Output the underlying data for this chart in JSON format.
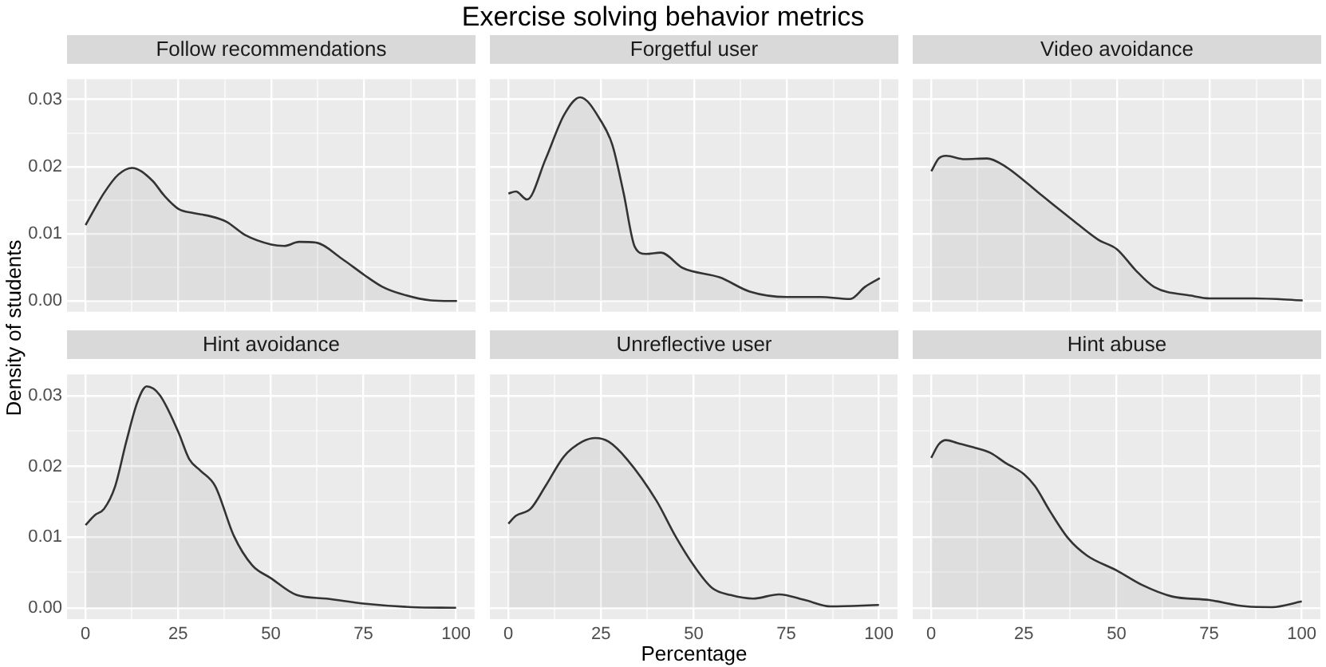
{
  "chart_data": [
    {
      "type": "area",
      "title": "Follow recommendations",
      "annotations": [
        "Exercise solving behavior metrics"
      ],
      "ylabel": "Density of students",
      "color": "#333333",
      "grid": true,
      "tick_labels": "y",
      "x": [
        0,
        5,
        8.8,
        12.5,
        18,
        21,
        25,
        29,
        33.7,
        37.9,
        43,
        50,
        53.5,
        57.5,
        62,
        69,
        75,
        80,
        84.7,
        93,
        100
      ],
      "values": [
        0.0113,
        0.0161,
        0.0188,
        0.0198,
        0.0179,
        0.0158,
        0.0137,
        0.0131,
        0.0126,
        0.0118,
        0.0098,
        0.0084,
        0.0082,
        0.0088,
        0.0087,
        0.0063,
        0.0039,
        0.0021,
        0.0011,
        0.0001,
        0
      ],
      "xlim": [
        -5,
        105
      ],
      "xticks": [
        0,
        {
          "value": 12.5,
          "label": null
        },
        25,
        {
          "value": 37.5,
          "label": null
        },
        50,
        {
          "value": 62.5,
          "label": null
        },
        75,
        {
          "value": 87.5,
          "label": null
        },
        100
      ],
      "ylim": [
        -0.0016,
        0.033
      ],
      "yticks": [
        {
          "value": 0,
          "label": "0.00"
        },
        {
          "value": 0.005,
          "label": null
        },
        {
          "value": 0.01,
          "label": "0.01"
        },
        {
          "value": 0.015,
          "label": null
        },
        {
          "value": 0.02,
          "label": "0.02"
        },
        {
          "value": 0.025,
          "label": null
        },
        {
          "value": 0.03,
          "label": "0.03"
        }
      ]
    },
    {
      "type": "area",
      "title": "Forgetful user",
      "color": "#333333",
      "grid": true,
      "tick_labels": false,
      "x": [
        0,
        2,
        5,
        10,
        15,
        19.3,
        25,
        28,
        31,
        34,
        37,
        41,
        47,
        57,
        65,
        75,
        84,
        92,
        96,
        100
      ],
      "values": [
        0.016,
        0.0163,
        0.0151,
        0.0211,
        0.0277,
        0.0303,
        0.0267,
        0.0232,
        0.0161,
        0.0081,
        0.007,
        0.0072,
        0.0049,
        0.0035,
        0.0014,
        0.0006,
        0.0006,
        0.0003,
        0.0021,
        0.0034
      ],
      "xlim": [
        -5,
        105
      ],
      "xticks": [
        0,
        {
          "value": 12.5,
          "label": null
        },
        25,
        {
          "value": 37.5,
          "label": null
        },
        50,
        {
          "value": 62.5,
          "label": null
        },
        75,
        {
          "value": 87.5,
          "label": null
        },
        100
      ],
      "ylim": [
        -0.0016,
        0.033
      ],
      "yticks": [
        0,
        {
          "value": 0.005,
          "label": null
        },
        0.01,
        {
          "value": 0.015,
          "label": null
        },
        0.02,
        {
          "value": 0.025,
          "label": null
        },
        0.03
      ]
    },
    {
      "type": "area",
      "title": "Video avoidance",
      "color": "#333333",
      "grid": true,
      "tick_labels": false,
      "x": [
        0,
        2,
        4,
        9,
        15,
        20,
        25,
        30,
        37.5,
        45,
        50,
        55,
        60,
        70,
        75,
        87,
        100
      ],
      "values": [
        0.0193,
        0.0212,
        0.0216,
        0.0211,
        0.0212,
        0.02,
        0.0179,
        0.0156,
        0.0123,
        0.0091,
        0.0077,
        0.0046,
        0.0021,
        0.0008,
        0.0004,
        0.0004,
        0.0001
      ],
      "xlim": [
        -5,
        105
      ],
      "xticks": [
        0,
        {
          "value": 12.5,
          "label": null
        },
        25,
        {
          "value": 37.5,
          "label": null
        },
        50,
        {
          "value": 62.5,
          "label": null
        },
        75,
        {
          "value": 87.5,
          "label": null
        },
        100
      ],
      "ylim": [
        -0.0016,
        0.033
      ],
      "yticks": [
        0,
        {
          "value": 0.005,
          "label": null
        },
        0.01,
        {
          "value": 0.015,
          "label": null
        },
        0.02,
        {
          "value": 0.025,
          "label": null
        },
        0.03
      ]
    },
    {
      "type": "area",
      "title": "Hint avoidance",
      "color": "#333333",
      "grid": true,
      "x": [
        0,
        2.5,
        5,
        8,
        11,
        14,
        16.5,
        20,
        25,
        28,
        31,
        35,
        40,
        45,
        50,
        57,
        65,
        75,
        88,
        100
      ],
      "values": [
        0.0117,
        0.0131,
        0.014,
        0.0172,
        0.0235,
        0.0291,
        0.0313,
        0.0301,
        0.0249,
        0.021,
        0.0194,
        0.0172,
        0.0102,
        0.006,
        0.0042,
        0.0018,
        0.0013,
        0.0006,
        0.0001,
        0
      ],
      "xlim": [
        -5,
        105
      ],
      "xticks": [
        0,
        {
          "value": 12.5,
          "label": null
        },
        25,
        {
          "value": 37.5,
          "label": null
        },
        50,
        {
          "value": 62.5,
          "label": null
        },
        75,
        {
          "value": 87.5,
          "label": null
        },
        100
      ],
      "ylim": [
        -0.0016,
        0.033
      ],
      "yticks": [
        {
          "value": 0,
          "label": "0.00"
        },
        {
          "value": 0.005,
          "label": null
        },
        {
          "value": 0.01,
          "label": "0.01"
        },
        {
          "value": 0.015,
          "label": null
        },
        {
          "value": 0.02,
          "label": "0.02"
        },
        {
          "value": 0.025,
          "label": null
        },
        {
          "value": 0.03,
          "label": "0.03"
        }
      ]
    },
    {
      "type": "area",
      "title": "Unreflective user",
      "xlabel": "Percentage",
      "color": "#333333",
      "grid": true,
      "tick_labels": "x",
      "x": [
        0,
        2,
        6,
        10,
        15,
        20,
        23.5,
        27,
        32,
        40,
        45,
        50,
        55,
        60,
        66,
        73,
        80,
        87,
        100
      ],
      "values": [
        0.0119,
        0.013,
        0.014,
        0.0172,
        0.0214,
        0.0235,
        0.024,
        0.0235,
        0.021,
        0.0151,
        0.0102,
        0.006,
        0.0028,
        0.0018,
        0.0013,
        0.0019,
        0.0011,
        0.0002,
        0.0004
      ],
      "xlim": [
        -5,
        105
      ],
      "xticks": [
        0,
        {
          "value": 12.5,
          "label": null
        },
        25,
        {
          "value": 37.5,
          "label": null
        },
        50,
        {
          "value": 62.5,
          "label": null
        },
        75,
        {
          "value": 87.5,
          "label": null
        },
        100
      ],
      "ylim": [
        -0.0016,
        0.033
      ],
      "yticks": [
        0,
        {
          "value": 0.005,
          "label": null
        },
        0.01,
        {
          "value": 0.015,
          "label": null
        },
        0.02,
        {
          "value": 0.025,
          "label": null
        },
        0.03
      ]
    },
    {
      "type": "area",
      "title": "Hint abuse",
      "color": "#333333",
      "grid": true,
      "tick_labels": "x",
      "x": [
        0,
        2,
        4,
        7,
        12,
        16,
        20,
        25,
        28,
        32,
        37,
        42,
        50,
        57,
        65,
        75,
        85,
        92,
        100
      ],
      "values": [
        0.0212,
        0.0231,
        0.0237,
        0.0233,
        0.0226,
        0.0219,
        0.0205,
        0.0189,
        0.0172,
        0.0137,
        0.0098,
        0.0074,
        0.0053,
        0.0032,
        0.0016,
        0.0011,
        0.0002,
        0.0001,
        0.0009
      ],
      "xlim": [
        -5,
        105
      ],
      "xticks": [
        0,
        {
          "value": 12.5,
          "label": null
        },
        25,
        {
          "value": 37.5,
          "label": null
        },
        50,
        {
          "value": 62.5,
          "label": null
        },
        75,
        {
          "value": 87.5,
          "label": null
        },
        100
      ],
      "ylim": [
        -0.0016,
        0.033
      ],
      "yticks": [
        0,
        {
          "value": 0.005,
          "label": null
        },
        0.01,
        {
          "value": 0.015,
          "label": null
        },
        0.02,
        {
          "value": 0.025,
          "label": null
        },
        0.03
      ]
    }
  ]
}
